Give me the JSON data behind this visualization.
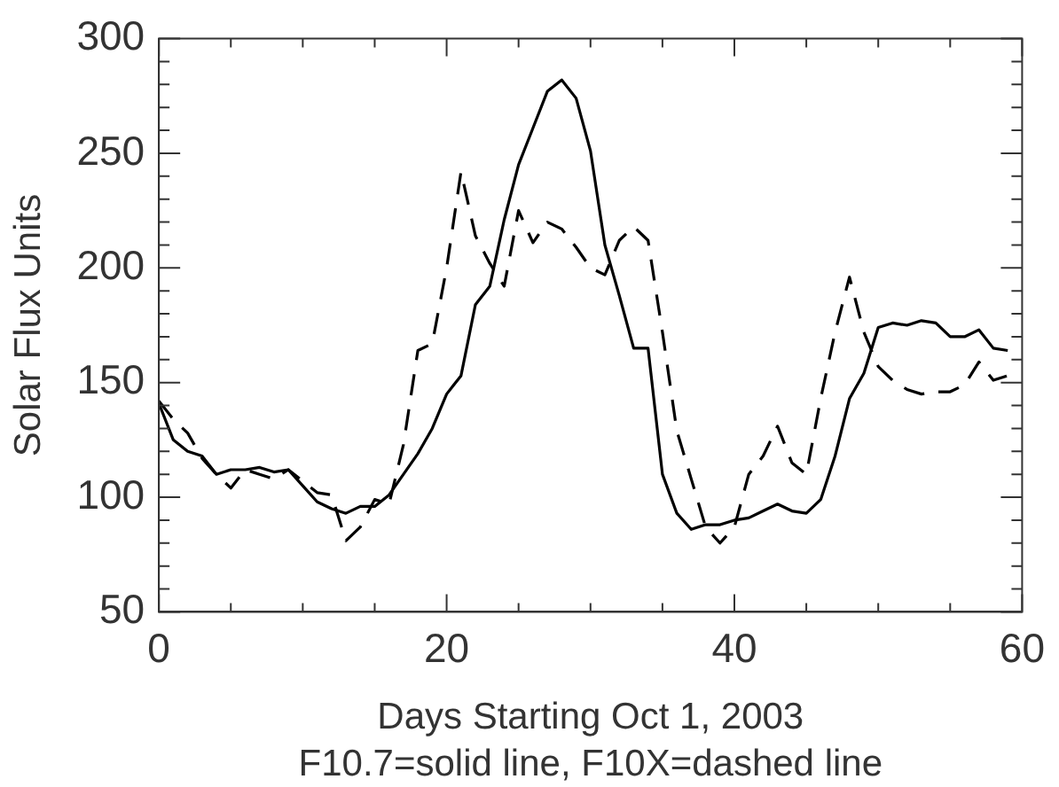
{
  "chart_data": {
    "type": "line",
    "xlabel": "Days Starting Oct 1, 2003",
    "ylabel": "Solar Flux Units",
    "annotations": [
      "F10.7=solid line, F10X=dashed line"
    ],
    "x": [
      0,
      1,
      2,
      3,
      4,
      5,
      6,
      7,
      8,
      9,
      10,
      11,
      12,
      13,
      14,
      15,
      16,
      17,
      18,
      19,
      20,
      21,
      22,
      23,
      24,
      25,
      26,
      27,
      28,
      29,
      30,
      31,
      32,
      33,
      34,
      35,
      36,
      37,
      38,
      39,
      40,
      41,
      42,
      43,
      44,
      45,
      46,
      47,
      48,
      49,
      50,
      51,
      52,
      53,
      54,
      55,
      56,
      57,
      58,
      59
    ],
    "series": [
      {
        "color": "#000000",
        "line_style": "solid",
        "values": [
          141,
          125,
          120,
          118,
          110,
          112,
          112,
          113,
          111,
          112,
          105,
          98,
          95,
          93,
          96,
          96,
          101,
          110,
          119,
          130,
          145,
          153,
          184,
          192,
          221,
          245,
          261,
          277,
          282,
          274,
          251,
          210,
          188,
          165,
          165,
          110,
          93,
          86,
          88,
          88,
          90,
          91,
          94,
          97,
          94,
          93,
          99,
          118,
          143,
          154,
          174,
          176,
          175,
          177,
          176,
          170,
          170,
          173,
          165,
          164
        ]
      },
      {
        "color": "#000000",
        "line_style": "dashed",
        "values": [
          142,
          134,
          128,
          117,
          110,
          104,
          112,
          110,
          108,
          112,
          107,
          102,
          101,
          81,
          87,
          99,
          97,
          123,
          164,
          167,
          200,
          242,
          214,
          202,
          192,
          225,
          211,
          220,
          217,
          209,
          200,
          197,
          212,
          218,
          212,
          172,
          129,
          108,
          87,
          80,
          87,
          110,
          118,
          131,
          115,
          110,
          143,
          172,
          196,
          172,
          157,
          151,
          147,
          145,
          146,
          146,
          149,
          159,
          151,
          153
        ]
      }
    ],
    "xlim": [
      0,
      60
    ],
    "xticks": [
      0,
      {
        "value": 5,
        "label": null
      },
      {
        "value": 10,
        "label": null
      },
      {
        "value": 15,
        "label": null
      },
      20,
      {
        "value": 25,
        "label": null
      },
      {
        "value": 30,
        "label": null
      },
      {
        "value": 35,
        "label": null
      },
      40,
      {
        "value": 45,
        "label": null
      },
      {
        "value": 50,
        "label": null
      },
      {
        "value": 55,
        "label": null
      },
      60
    ],
    "ylim": [
      50,
      300
    ],
    "yticks": [
      50,
      {
        "value": 60,
        "label": null
      },
      {
        "value": 70,
        "label": null
      },
      {
        "value": 80,
        "label": null
      },
      {
        "value": 90,
        "label": null
      },
      100,
      {
        "value": 110,
        "label": null
      },
      {
        "value": 120,
        "label": null
      },
      {
        "value": 130,
        "label": null
      },
      {
        "value": 140,
        "label": null
      },
      150,
      {
        "value": 160,
        "label": null
      },
      {
        "value": 170,
        "label": null
      },
      {
        "value": 180,
        "label": null
      },
      {
        "value": 190,
        "label": null
      },
      200,
      {
        "value": 210,
        "label": null
      },
      {
        "value": 220,
        "label": null
      },
      {
        "value": 230,
        "label": null
      },
      {
        "value": 240,
        "label": null
      },
      250,
      {
        "value": 260,
        "label": null
      },
      {
        "value": 270,
        "label": null
      },
      {
        "value": 280,
        "label": null
      },
      {
        "value": 290,
        "label": null
      },
      300
    ],
    "grid": false,
    "legend": false,
    "marker": "none"
  }
}
